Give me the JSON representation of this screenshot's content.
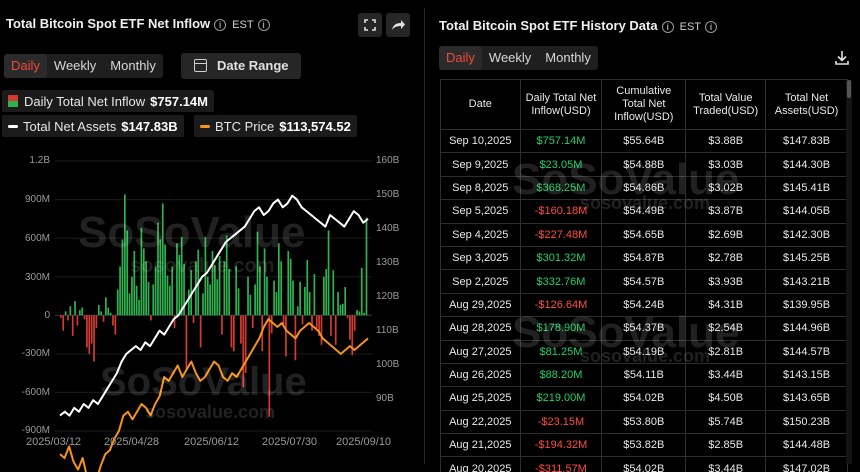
{
  "left": {
    "title": "Total Bitcoin Spot ETF Net Inflow",
    "timezone": "EST",
    "tabs": [
      "Daily",
      "Weekly",
      "Monthly"
    ],
    "active_tab": "Daily",
    "date_range_label": "Date Range",
    "legend": {
      "inflow_label": "Daily Total Net Inflow",
      "inflow_value": "$757.14M",
      "assets_label": "Total Net Assets",
      "assets_value": "$147.83B",
      "btc_label": "BTC Price",
      "btc_value": "$113,574.52"
    },
    "watermark": {
      "brand": "SoSoValue",
      "site": "sosovalue.com"
    }
  },
  "right": {
    "title": "Total Bitcoin Spot ETF History Data",
    "timezone": "EST",
    "tabs": [
      "Daily",
      "Weekly",
      "Monthly"
    ],
    "active_tab": "Daily",
    "columns": [
      "Date",
      "Daily Total Net Inflow(USD)",
      "Cumulative Total Net Inflow(USD)",
      "Total Value Traded(USD)",
      "Total Net Assets(USD)"
    ],
    "rows": [
      [
        "Sep 10,2025",
        "$757.14M",
        "$55.64B",
        "$3.88B",
        "$147.83B"
      ],
      [
        "Sep 9,2025",
        "$23.05M",
        "$54.88B",
        "$3.03B",
        "$144.30B"
      ],
      [
        "Sep 8,2025",
        "$368.25M",
        "$54.86B",
        "$3.02B",
        "$145.41B"
      ],
      [
        "Sep 5,2025",
        "-$160.18M",
        "$54.49B",
        "$3.87B",
        "$144.05B"
      ],
      [
        "Sep 4,2025",
        "-$227.48M",
        "$54.65B",
        "$2.69B",
        "$142.30B"
      ],
      [
        "Sep 3,2025",
        "$301.32M",
        "$54.87B",
        "$2.78B",
        "$145.25B"
      ],
      [
        "Sep 2,2025",
        "$332.76M",
        "$54.57B",
        "$3.93B",
        "$143.21B"
      ],
      [
        "Aug 29,2025",
        "-$126.64M",
        "$54.24B",
        "$4.31B",
        "$139.95B"
      ],
      [
        "Aug 28,2025",
        "$178.90M",
        "$54.37B",
        "$2.54B",
        "$144.96B"
      ],
      [
        "Aug 27,2025",
        "$81.25M",
        "$54.19B",
        "$2.81B",
        "$144.57B"
      ],
      [
        "Aug 26,2025",
        "$88.20M",
        "$54.11B",
        "$3.44B",
        "$143.15B"
      ],
      [
        "Aug 25,2025",
        "$219.00M",
        "$54.02B",
        "$4.50B",
        "$143.65B"
      ],
      [
        "Aug 22,2025",
        "-$23.15M",
        "$53.80B",
        "$5.74B",
        "$150.23B"
      ],
      [
        "Aug 21,2025",
        "-$194.32M",
        "$53.82B",
        "$2.85B",
        "$144.48B"
      ],
      [
        "Aug 20,2025",
        "-$311.57M",
        "$54.02B",
        "$3.44B",
        "$147.02B"
      ]
    ]
  },
  "colors": {
    "positive": "#1fd16a",
    "negative": "#ff4b3e",
    "bar_pos": "#2fb14f",
    "bar_neg": "#d23b31",
    "assets_line": "#ffffff",
    "btc_line": "#f7931a",
    "accent": "#f04a3a"
  },
  "chart_data": {
    "type": "bar",
    "x_labels": [
      "2025/03/12",
      "2025/04/28",
      "2025/06/12",
      "2025/07/30",
      "2025/09/10"
    ],
    "y_left_ticks": [
      "1.2B",
      "900M",
      "600M",
      "300M",
      "0",
      "-300M",
      "-600M",
      "-900M"
    ],
    "y_left_range": [
      -900,
      1200
    ],
    "y_right_ticks": [
      "160B",
      "150B",
      "140B",
      "130B",
      "120B",
      "110B",
      "100B",
      "90B"
    ],
    "y_right_range": [
      90,
      160
    ],
    "series": [
      {
        "name": "Daily Total Net Inflow",
        "unit": "M USD",
        "values": [
          -20,
          -120,
          30,
          -40,
          70,
          -160,
          110,
          -80,
          40,
          60,
          -30,
          -250,
          -300,
          -220,
          -360,
          -100,
          80,
          30,
          -50,
          140,
          60,
          20,
          -80,
          -150,
          200,
          380,
          590,
          940,
          660,
          170,
          300,
          500,
          230,
          120,
          680,
          520,
          420,
          260,
          -40,
          240,
          380,
          720,
          590,
          870,
          550,
          310,
          230,
          380,
          -100,
          560,
          470,
          610,
          400,
          -420,
          200,
          350,
          -60,
          420,
          510,
          -250,
          170,
          610,
          300,
          240,
          500,
          390,
          280,
          460,
          -150,
          420,
          620,
          360,
          -250,
          -280,
          380,
          210,
          -220,
          -560,
          -450,
          300,
          160,
          -100,
          240,
          650,
          380,
          -280,
          520,
          300,
          -790,
          -140,
          270,
          180,
          560,
          420,
          -70,
          -320,
          500,
          440,
          270,
          -350,
          70,
          260,
          -70,
          220,
          430,
          180,
          -120,
          320,
          -100,
          -160,
          -230,
          300,
          360,
          660,
          -160,
          350,
          -230,
          180,
          80,
          90,
          220,
          -20,
          -190,
          -310,
          -120,
          40,
          30,
          370,
          20,
          760
        ]
      },
      {
        "name": "Total Net Assets",
        "unit": "B USD",
        "values": [
          94,
          95,
          94,
          96,
          95,
          97,
          96,
          98,
          97,
          99,
          101,
          103,
          105,
          108,
          110,
          111,
          112,
          111,
          113,
          112,
          114,
          116,
          115,
          117,
          119,
          120,
          122,
          124,
          126,
          128,
          130,
          131,
          133,
          135,
          137,
          139,
          140,
          141,
          142,
          143,
          145,
          147,
          148,
          146,
          147,
          149,
          150,
          148,
          149,
          151,
          150,
          148,
          147,
          146,
          145,
          144,
          143,
          146,
          145,
          144,
          143,
          145,
          147,
          146,
          144,
          145
        ]
      },
      {
        "name": "BTC Price",
        "unit": "thousand USD",
        "values": [
          84,
          83,
          86,
          82,
          80,
          83,
          78,
          79,
          77,
          81,
          84,
          85,
          88,
          90,
          94,
          95,
          93,
          95,
          97,
          96,
          94,
          97,
          99,
          104,
          103,
          105,
          107,
          104,
          106,
          108,
          105,
          103,
          104,
          106,
          108,
          107,
          104,
          103,
          105,
          104,
          106,
          108,
          110,
          112,
          114,
          117,
          119,
          118,
          117,
          118,
          116,
          115,
          114,
          116,
          117,
          118,
          117,
          116,
          114,
          113,
          112,
          111,
          110,
          111,
          112,
          111,
          112,
          113,
          114
        ]
      }
    ]
  }
}
